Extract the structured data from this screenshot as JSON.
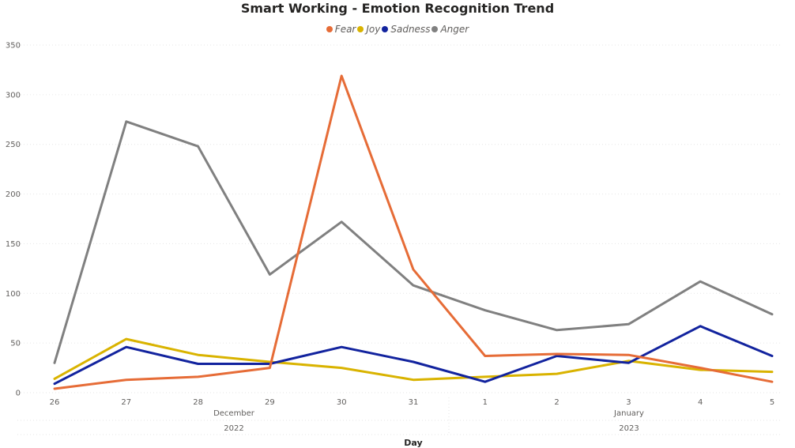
{
  "chart_data": {
    "type": "line",
    "title": "Smart Working - Emotion Recognition Trend",
    "xlabel": "Day",
    "ylabel": "",
    "ylim": [
      0,
      350
    ],
    "yticks": [
      "0",
      "50",
      "100",
      "150",
      "200",
      "250",
      "300",
      "350"
    ],
    "categories": [
      "26",
      "27",
      "28",
      "29",
      "30",
      "31",
      "1",
      "2",
      "3",
      "4",
      "5"
    ],
    "month_labels": [
      {
        "month": "December",
        "year": "2022"
      },
      {
        "month": "January",
        "year": "2023"
      }
    ],
    "grid": true,
    "legend_position": "top-center",
    "series": [
      {
        "name": "Fear",
        "color": "#E66C37",
        "values": [
          4,
          13,
          16,
          25,
          319,
          124,
          37,
          39,
          38,
          25,
          11
        ]
      },
      {
        "name": "Joy",
        "color": "#D9B300",
        "values": [
          14,
          54,
          38,
          31,
          25,
          13,
          16,
          19,
          32,
          23,
          21
        ]
      },
      {
        "name": "Sadness",
        "color": "#12239E",
        "values": [
          9,
          46,
          29,
          29,
          46,
          31,
          11,
          37,
          30,
          67,
          37
        ]
      },
      {
        "name": "Anger",
        "color": "#808080",
        "values": [
          30,
          273,
          248,
          119,
          172,
          108,
          83,
          63,
          69,
          112,
          79
        ]
      }
    ]
  }
}
